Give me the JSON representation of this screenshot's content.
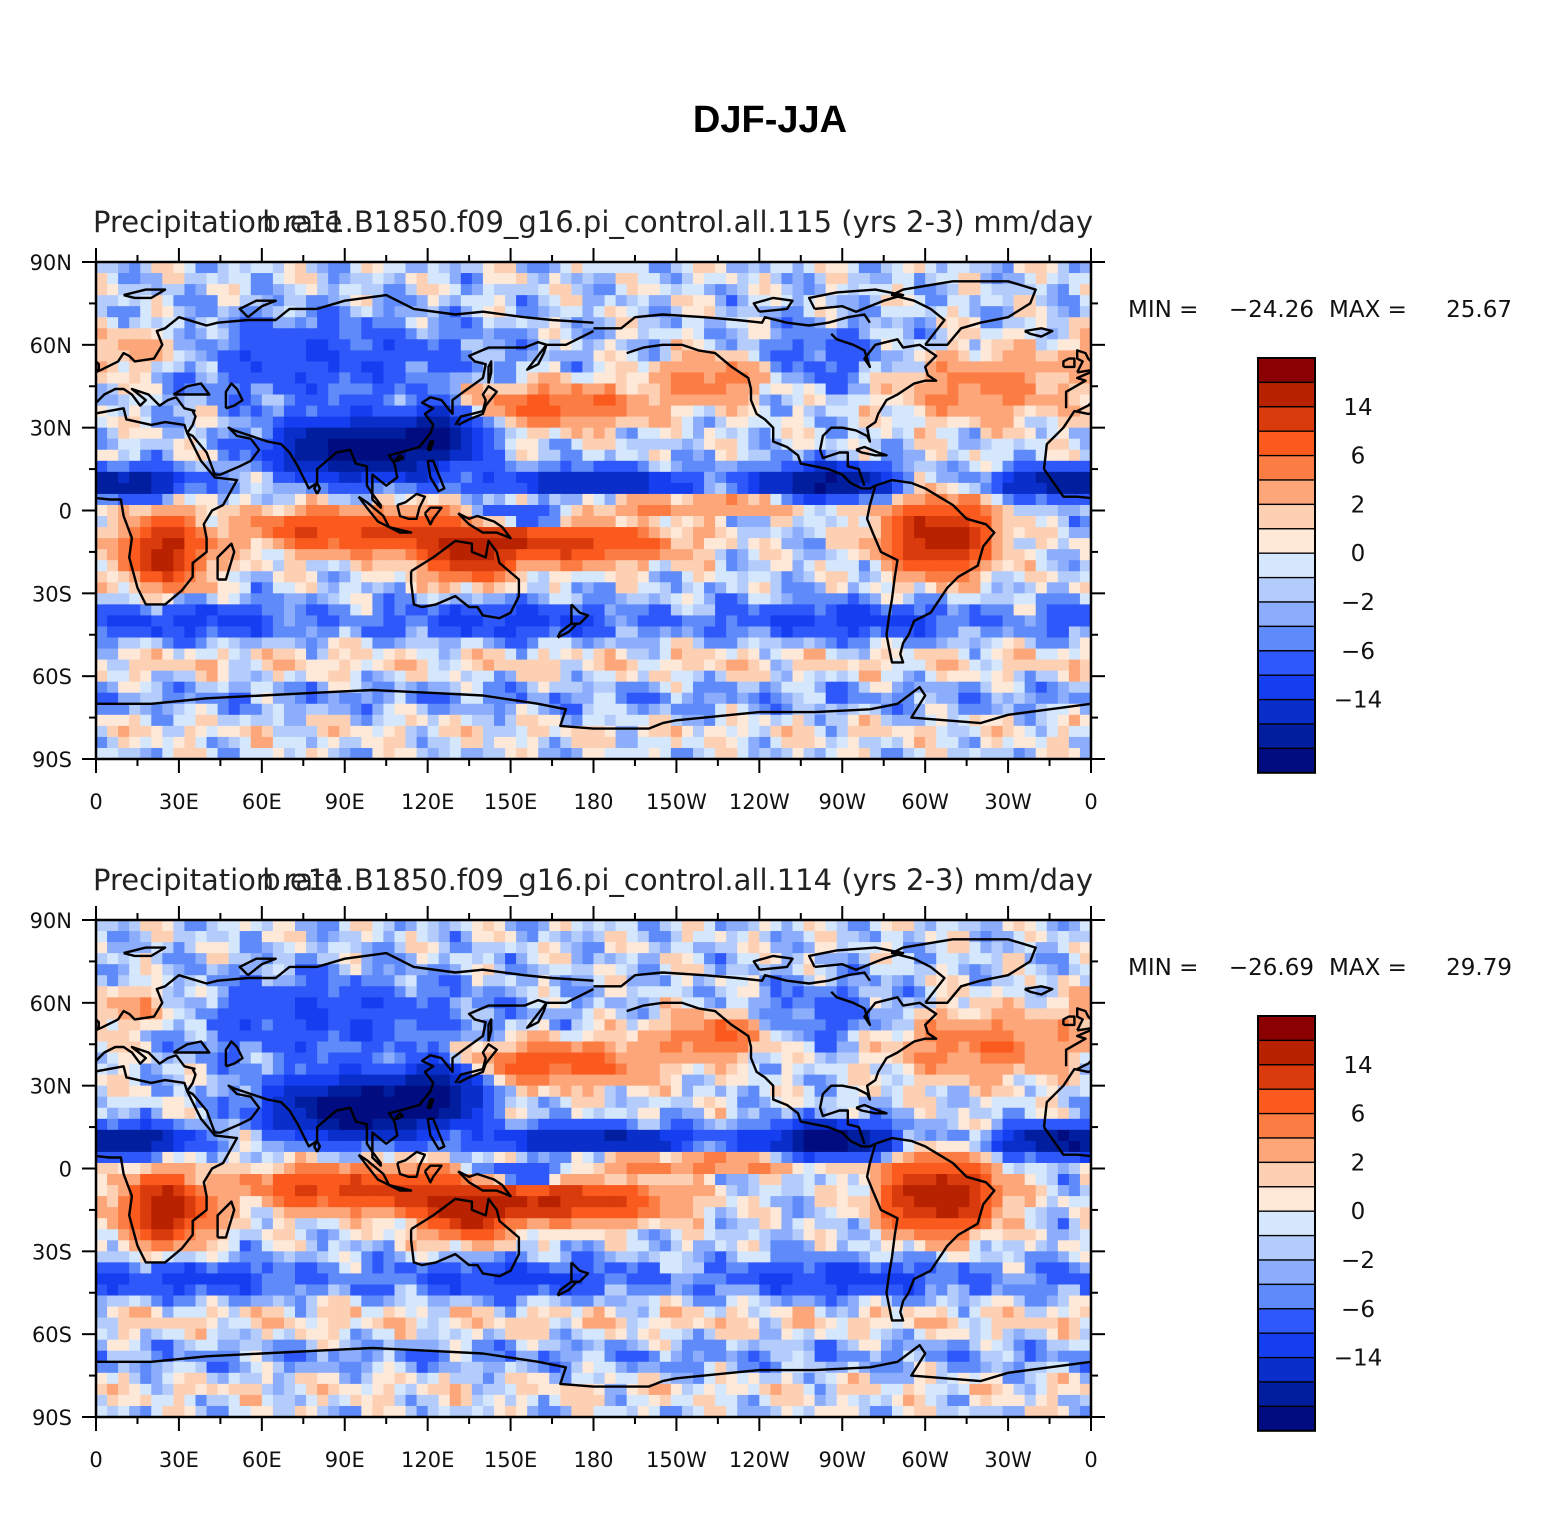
{
  "figure": {
    "title": "DJF-JJA"
  },
  "panels": [
    {
      "left_title": "Precipitation rate",
      "center_title": "b.e11.B1850.f09_g16.pi_control.all.115 (yrs 2-3)",
      "right_title": "mm/day",
      "min_label": "MIN =",
      "min_value": "−24.26",
      "max_label": "MAX =",
      "max_value": "25.67"
    },
    {
      "left_title": "Precipitation rate",
      "center_title": "b.e11.B1850.f09_g16.pi_control.all.114 (yrs 2-3)",
      "right_title": "mm/day",
      "min_label": "MIN =",
      "min_value": "−26.69",
      "max_label": "MAX =",
      "max_value": "29.79"
    }
  ],
  "axes": {
    "lat_labels": [
      "90N",
      "60N",
      "30N",
      "0",
      "30S",
      "60S",
      "90S"
    ],
    "lat_values": [
      90,
      60,
      30,
      0,
      -30,
      -60,
      -90
    ],
    "lon_labels": [
      "0",
      "30E",
      "60E",
      "90E",
      "120E",
      "150E",
      "180",
      "150W",
      "120W",
      "90W",
      "60W",
      "30W",
      "0"
    ],
    "lon_values": [
      0,
      30,
      60,
      90,
      120,
      150,
      180,
      210,
      240,
      270,
      300,
      330,
      360
    ]
  },
  "colorbar": {
    "labels": [
      "14",
      "6",
      "2",
      "0",
      "−2",
      "−6",
      "−14"
    ],
    "colors": [
      "#8b0000",
      "#b82200",
      "#d93b0d",
      "#fa5a1e",
      "#fb7d44",
      "#fca67a",
      "#fdd0b4",
      "#fee8d8",
      "#d4e7fd",
      "#b4ccfc",
      "#8cadfb",
      "#5e8afa",
      "#2e58fa",
      "#143ef0",
      "#0a2ec9",
      "#001e9e",
      "#000c80"
    ]
  },
  "chart_data": {
    "type": "heatmap",
    "title": "DJF-JJA",
    "variable": "Precipitation rate",
    "units": "mm/day",
    "x_range": [
      0,
      360
    ],
    "y_range": [
      -90,
      90
    ],
    "color_levels": [
      -14,
      -6,
      -2,
      0,
      2,
      6,
      14
    ],
    "maps": [
      {
        "case": "b.e11.B1850.f09_g16.pi_control.all.115 (yrs 2-3)",
        "min": -24.26,
        "max": 25.67
      },
      {
        "case": "b.e11.B1850.f09_g16.pi_control.all.114 (yrs 2-3)",
        "min": -26.69,
        "max": 29.79
      }
    ]
  }
}
